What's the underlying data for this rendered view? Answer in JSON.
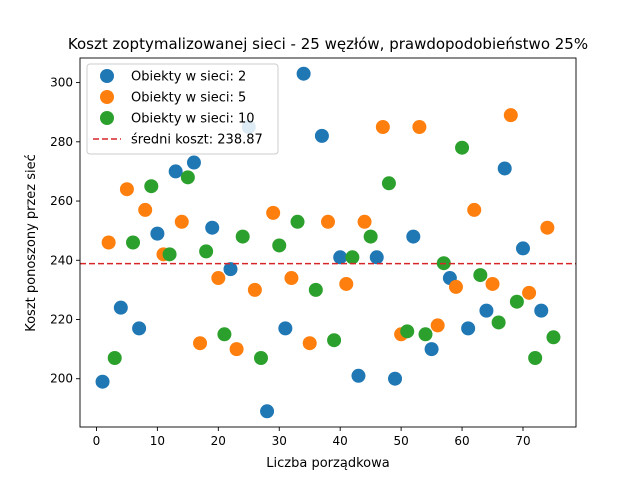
{
  "chart_data": {
    "type": "scatter",
    "title": "Koszt zoptymalizowanej sieci - 25 węzłów, prawdopodobieństwo 25%",
    "xlabel": "Liczba porządkowa",
    "ylabel": "Koszt ponoszony przez sieć",
    "xlim": [
      -2.7,
      78.7
    ],
    "ylim": [
      183.7,
      308.3
    ],
    "xticks": [
      0,
      10,
      20,
      30,
      40,
      50,
      60,
      70
    ],
    "yticks": [
      200,
      220,
      240,
      260,
      280,
      300
    ],
    "grid": false,
    "legend_position": "top-left",
    "mean_line": {
      "label": "średni koszt: 238.87",
      "value": 238.87,
      "color": "#d62728"
    },
    "series": [
      {
        "name": "Obiekty w sieci: 2",
        "color": "#1f77b4",
        "points": [
          [
            1,
            199
          ],
          [
            4,
            224
          ],
          [
            7,
            217
          ],
          [
            10,
            249
          ],
          [
            13,
            270
          ],
          [
            16,
            273
          ],
          [
            19,
            251
          ],
          [
            22,
            237
          ],
          [
            25,
            285
          ],
          [
            28,
            189
          ],
          [
            31,
            217
          ],
          [
            34,
            303
          ],
          [
            37,
            282
          ],
          [
            40,
            241
          ],
          [
            43,
            201
          ],
          [
            46,
            241
          ],
          [
            49,
            200
          ],
          [
            52,
            248
          ],
          [
            55,
            210
          ],
          [
            58,
            234
          ],
          [
            61,
            217
          ],
          [
            64,
            223
          ],
          [
            67,
            271
          ],
          [
            70,
            244
          ],
          [
            73,
            223
          ]
        ]
      },
      {
        "name": "Obiekty w sieci: 5",
        "color": "#ff7f0e",
        "points": [
          [
            2,
            246
          ],
          [
            5,
            264
          ],
          [
            8,
            257
          ],
          [
            11,
            242
          ],
          [
            14,
            253
          ],
          [
            17,
            212
          ],
          [
            20,
            234
          ],
          [
            23,
            210
          ],
          [
            26,
            230
          ],
          [
            29,
            256
          ],
          [
            32,
            234
          ],
          [
            35,
            212
          ],
          [
            38,
            253
          ],
          [
            41,
            232
          ],
          [
            44,
            253
          ],
          [
            47,
            285
          ],
          [
            50,
            215
          ],
          [
            53,
            285
          ],
          [
            56,
            218
          ],
          [
            59,
            231
          ],
          [
            62,
            257
          ],
          [
            65,
            232
          ],
          [
            68,
            289
          ],
          [
            71,
            229
          ],
          [
            74,
            251
          ]
        ]
      },
      {
        "name": "Obiekty w sieci: 10",
        "color": "#2ca02c",
        "points": [
          [
            3,
            207
          ],
          [
            6,
            246
          ],
          [
            9,
            265
          ],
          [
            12,
            242
          ],
          [
            15,
            268
          ],
          [
            18,
            243
          ],
          [
            21,
            215
          ],
          [
            24,
            248
          ],
          [
            27,
            207
          ],
          [
            30,
            245
          ],
          [
            33,
            253
          ],
          [
            36,
            230
          ],
          [
            39,
            213
          ],
          [
            42,
            241
          ],
          [
            45,
            248
          ],
          [
            48,
            266
          ],
          [
            51,
            216
          ],
          [
            54,
            215
          ],
          [
            57,
            239
          ],
          [
            60,
            278
          ],
          [
            63,
            235
          ],
          [
            66,
            219
          ],
          [
            69,
            226
          ],
          [
            72,
            207
          ],
          [
            75,
            214
          ]
        ]
      }
    ]
  }
}
